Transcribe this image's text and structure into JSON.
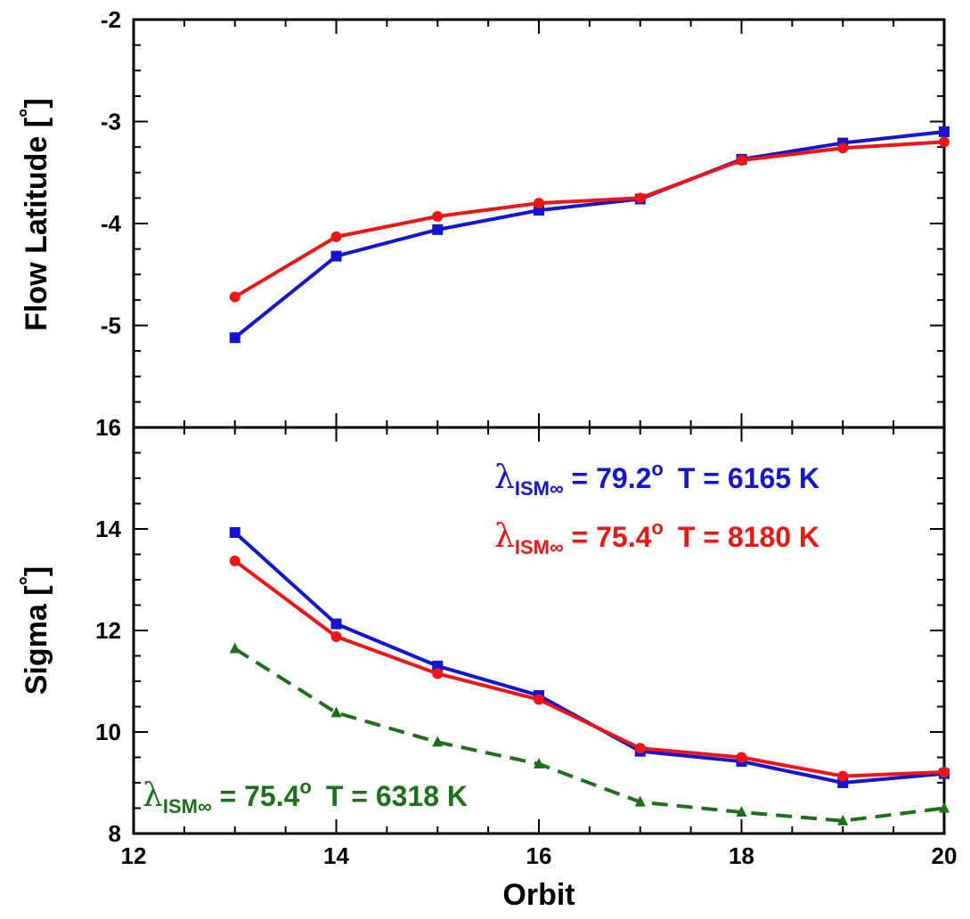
{
  "chart_data": {
    "type": "line",
    "x": [
      13,
      14,
      15,
      16,
      17,
      18,
      19,
      20
    ],
    "xlabel": "Orbit",
    "xlim": [
      12,
      20
    ],
    "xticks": [
      12,
      14,
      16,
      18,
      20
    ],
    "colors": {
      "blue": "#1414d2",
      "red": "#f01414",
      "green": "#1e6e1e"
    },
    "panels": [
      {
        "id": "top",
        "ylabel_text": "Flow Latitude [",
        "ylabel_unit": "°",
        "ylabel_close": "]",
        "ylim": [
          -6,
          -2
        ],
        "yticks": [
          -2,
          -3,
          -4,
          -5
        ],
        "series": [
          {
            "color": "#1414d2",
            "marker": "square",
            "dash": false,
            "values": [
              -5.12,
              -4.32,
              -4.06,
              -3.87,
              -3.76,
              -3.37,
              -3.21,
              -3.1
            ]
          },
          {
            "color": "#f01414",
            "marker": "circle",
            "dash": false,
            "values": [
              -4.72,
              -4.13,
              -3.93,
              -3.8,
              -3.75,
              -3.38,
              -3.26,
              -3.2
            ]
          }
        ]
      },
      {
        "id": "bottom",
        "ylabel_text": "Sigma [",
        "ylabel_unit": "°",
        "ylabel_close": "]",
        "ylim": [
          8,
          16
        ],
        "yticks": [
          8,
          10,
          12,
          14,
          16
        ],
        "series": [
          {
            "color": "#1414d2",
            "marker": "square",
            "dash": false,
            "values": [
              13.93,
              12.13,
              11.3,
              10.72,
              9.62,
              9.42,
              9.0,
              9.18
            ]
          },
          {
            "color": "#f01414",
            "marker": "circle",
            "dash": false,
            "values": [
              13.37,
              11.88,
              11.15,
              10.64,
              9.68,
              9.5,
              9.13,
              9.21
            ]
          },
          {
            "color": "#1e6e1e",
            "marker": "triangle",
            "dash": true,
            "values": [
              11.64,
              10.38,
              9.8,
              9.37,
              8.62,
              8.42,
              8.25,
              8.5
            ]
          }
        ]
      }
    ],
    "annotations": [
      {
        "color": "#1414d2",
        "symbol": "λ",
        "sub": "ISM∞",
        "eq": " = 79.2",
        "sup": "o",
        "temp": "T = 6165 K"
      },
      {
        "color": "#f01414",
        "symbol": "λ",
        "sub": "ISM∞",
        "eq": " = 75.4",
        "sup": "o",
        "temp": "T = 8180 K"
      },
      {
        "color": "#1e6e1e",
        "symbol": "λ",
        "sub": "ISM∞",
        "eq": " = 75.4",
        "sup": "o",
        "temp": "T = 6318 K"
      }
    ]
  }
}
